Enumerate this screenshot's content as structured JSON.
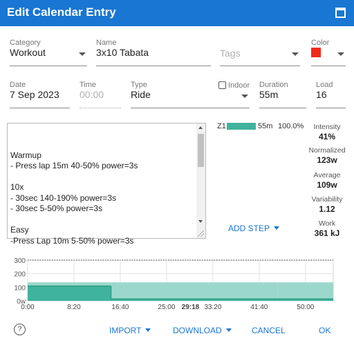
{
  "dialog": {
    "title": "Edit Calendar Entry"
  },
  "form": {
    "category": {
      "label": "Category",
      "value": "Workout"
    },
    "name": {
      "label": "Name",
      "value": "3x10 Tabata"
    },
    "tags": {
      "placeholder": "Tags"
    },
    "color": {
      "label": "Color",
      "value": "#f02a1a"
    },
    "date": {
      "label": "Date",
      "value": "7 Sep 2023"
    },
    "time": {
      "label": "Time",
      "placeholder": "00:00"
    },
    "type": {
      "label": "Type",
      "value": "Ride"
    },
    "indoor": {
      "label": "Indoor",
      "checked": false
    },
    "duration": {
      "label": "Duration",
      "value": "55m"
    },
    "load": {
      "label": "Load",
      "value": "16"
    }
  },
  "description": "\nWarmup\n- Press lap 15m 40-50% power=3s\n\n10x\n- 30sec 140-190% power=3s\n- 30sec 5-50% power=3s\n\nEasy\n-Press Lap 10m 5-50% power=3s",
  "zones": [
    {
      "name": "Z1",
      "duration": "55m",
      "percent": "100.0%",
      "fraction": 1.0
    }
  ],
  "add_step_label": "ADD STEP",
  "metrics": [
    {
      "label": "Intensity",
      "value": "41%"
    },
    {
      "label": "Normalized",
      "value": "123w"
    },
    {
      "label": "Average",
      "value": "109w"
    },
    {
      "label": "Variability",
      "value": "1.12"
    },
    {
      "label": "Work",
      "value": "361 kJ"
    }
  ],
  "chart_data": {
    "type": "area",
    "xlabels": [
      "0:00",
      "8:20",
      "16:40",
      "25:00",
      "29:18",
      "33:20",
      "41:40",
      "50:00"
    ],
    "ylabels": [
      "300",
      "200",
      "100",
      "0w"
    ],
    "ylim": [
      0,
      300
    ],
    "x_range_min": [
      0,
      55
    ],
    "reference_line": 300,
    "grid": true,
    "steps": [
      {
        "start": 0,
        "end": 15,
        "low": 109,
        "high": 136
      },
      {
        "start": 15,
        "end": 45,
        "low": 14,
        "high": 136
      },
      {
        "start": 45,
        "end": 55,
        "low": 14,
        "high": 136
      }
    ],
    "colors": {
      "fill": "#3fb39d",
      "fill_light": "#9bd8cb",
      "line": "#2e9a84"
    }
  },
  "footer": {
    "help": "?",
    "import": "IMPORT",
    "download": "DOWNLOAD",
    "cancel": "CANCEL",
    "ok": "OK"
  }
}
